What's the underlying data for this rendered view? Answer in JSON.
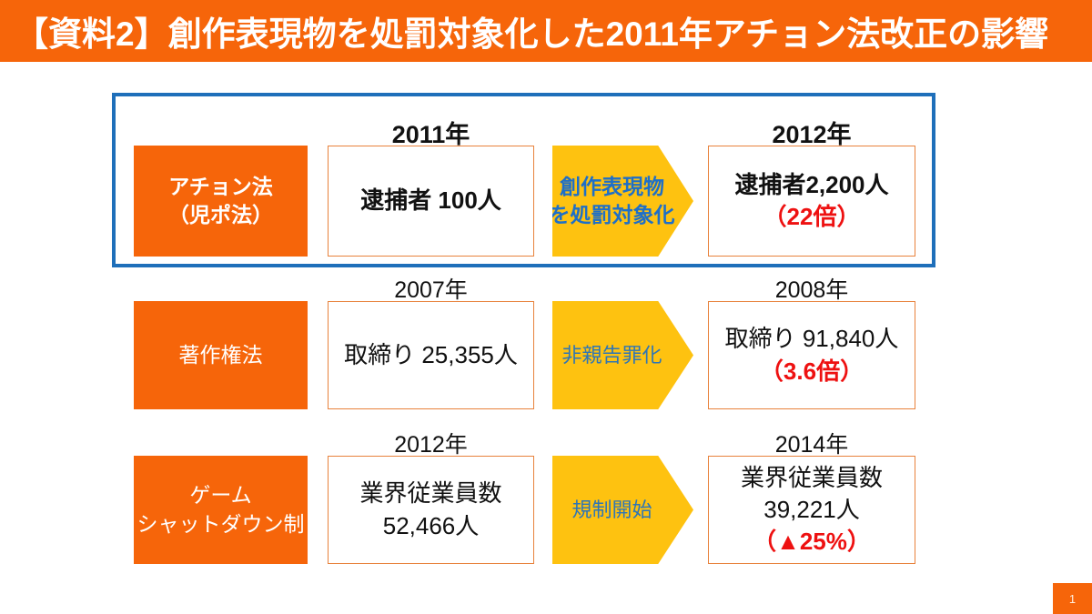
{
  "header": {
    "title": "【資料2】創作表現物を処罰対象化した2011年アチョン法改正の影響"
  },
  "footer": {
    "page_number": "1"
  },
  "colors": {
    "accent_orange": "#F6650A",
    "arrow_gold": "#FEC210",
    "highlight_blue": "#1E6FBA",
    "arrow_text_blue": "#2E75B6",
    "arrow_text_blue_strong": "#1E6FC8",
    "emphasis_red": "#EE1111",
    "box_border_orange": "#E8823C"
  },
  "rows": [
    {
      "name": "achon-law",
      "highlighted": true,
      "label": {
        "lines": [
          "アチョン法",
          "（児ポ法）"
        ]
      },
      "before": {
        "year": "2011年",
        "lines": [
          "逮捕者 100人"
        ]
      },
      "arrow": {
        "lines": [
          "創作表現物",
          "を処罰対象化"
        ]
      },
      "after": {
        "year": "2012年",
        "lines": [
          "逮捕者2,200人"
        ],
        "change": "（22倍）"
      }
    },
    {
      "name": "copyright-law",
      "highlighted": false,
      "label": {
        "lines": [
          "著作権法"
        ]
      },
      "before": {
        "year": "2007年",
        "lines": [
          "取締り 25,355人"
        ]
      },
      "arrow": {
        "lines": [
          "非親告罪化"
        ]
      },
      "after": {
        "year": "2008年",
        "lines": [
          "取締り 91,840人"
        ],
        "change": "（3.6倍）"
      }
    },
    {
      "name": "game-shutdown-law",
      "highlighted": false,
      "label": {
        "lines": [
          "ゲーム",
          "シャットダウン制"
        ]
      },
      "before": {
        "year": "2012年",
        "lines": [
          "業界従業員数",
          "52,466人"
        ]
      },
      "arrow": {
        "lines": [
          "規制開始"
        ]
      },
      "after": {
        "year": "2014年",
        "lines": [
          "業界従業員数",
          "39,221人"
        ],
        "change": "（▲25%）"
      }
    }
  ]
}
